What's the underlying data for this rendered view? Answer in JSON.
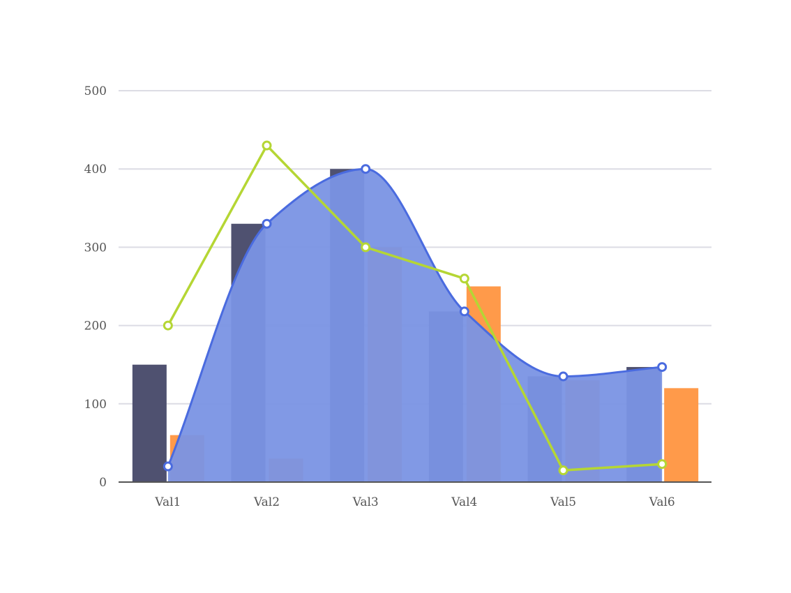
{
  "chart_data": {
    "type": "bar",
    "categories": [
      "Val1",
      "Val2",
      "Val3",
      "Val4",
      "Val5",
      "Val6"
    ],
    "ylim": [
      0,
      500
    ],
    "y_ticks": [
      "0",
      "100",
      "200",
      "300",
      "400",
      "500"
    ],
    "grid": true,
    "legend": "none",
    "title": "",
    "xlabel": "",
    "ylabel": "",
    "series": [
      {
        "type": "bar",
        "color": "#4f5170",
        "values": [
          150,
          330,
          400,
          218,
          135,
          147
        ]
      },
      {
        "type": "bar",
        "color": "#ff9a4a",
        "values": [
          60,
          30,
          300,
          250,
          130,
          120
        ]
      },
      {
        "type": "area",
        "smooth": true,
        "color": "#4a6bdf",
        "fill": "#7a93e4",
        "values": [
          20,
          330,
          400,
          218,
          135,
          147
        ]
      },
      {
        "type": "line",
        "color": "#b5d634",
        "values": [
          200,
          430,
          300,
          260,
          15,
          23
        ]
      }
    ]
  }
}
